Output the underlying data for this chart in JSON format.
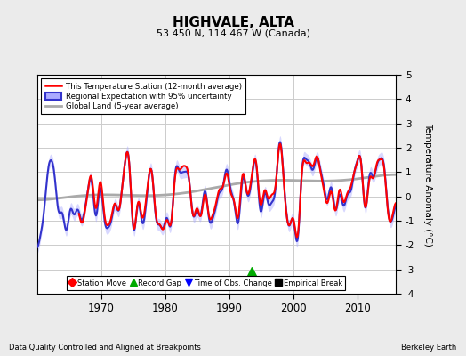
{
  "title": "HIGHVALE, ALTA",
  "subtitle": "53.450 N, 114.467 W (Canada)",
  "ylabel": "Temperature Anomaly (°C)",
  "footer_left": "Data Quality Controlled and Aligned at Breakpoints",
  "footer_right": "Berkeley Earth",
  "ylim": [
    -4,
    5
  ],
  "yticks": [
    -4,
    -3,
    -2,
    -1,
    0,
    1,
    2,
    3,
    4,
    5
  ],
  "xlim": [
    1960,
    2016
  ],
  "xticks": [
    1970,
    1980,
    1990,
    2000,
    2010
  ],
  "legend_items": [
    {
      "label": "This Temperature Station (12-month average)",
      "color": "#FF0000",
      "lw": 1.5
    },
    {
      "label": "Regional Expectation with 95% uncertainty",
      "color": "#3333CC",
      "lw": 1.5
    },
    {
      "label": "Global Land (5-year average)",
      "color": "#AAAAAA",
      "lw": 2.0
    }
  ],
  "marker_items": [
    {
      "label": "Station Move",
      "color": "#FF0000",
      "marker": "D"
    },
    {
      "label": "Record Gap",
      "color": "#00AA00",
      "marker": "^"
    },
    {
      "label": "Time of Obs. Change",
      "color": "#0000FF",
      "marker": "v"
    },
    {
      "label": "Empirical Break",
      "color": "#000000",
      "marker": "s"
    }
  ],
  "record_gap_x": 1993.5,
  "record_gap_y": -3.1,
  "background_color": "#EBEBEB",
  "plot_bg_color": "#FFFFFF",
  "grid_color": "#CCCCCC",
  "band_color": "#AAAAFF",
  "band_alpha": 0.45,
  "station_start_year": 1966.5,
  "figsize": [
    5.24,
    4.0
  ],
  "dpi": 100
}
